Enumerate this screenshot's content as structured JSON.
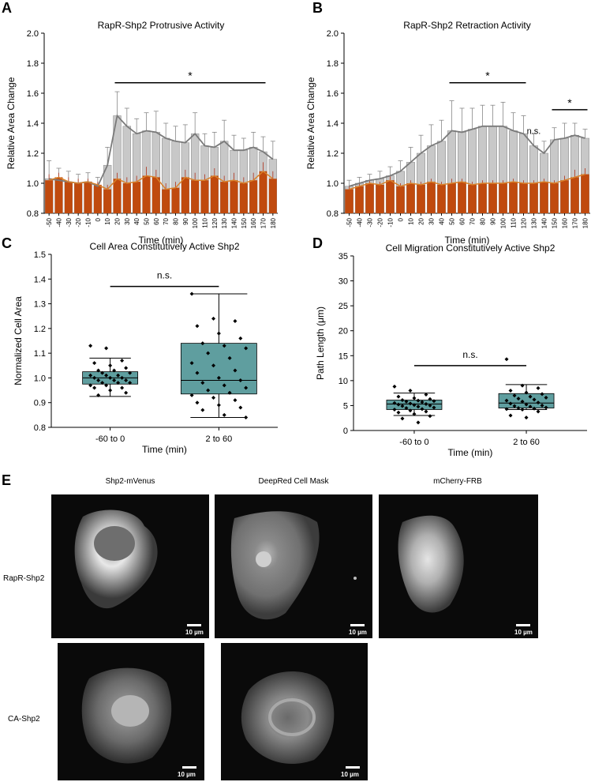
{
  "panel_letters": {
    "a": "A",
    "b": "B",
    "c": "C",
    "d": "D",
    "e": "E"
  },
  "colors": {
    "gray_bar": "#c8c8c8",
    "gray_line": "#7a7a7a",
    "orange_bar": "#c04a0e",
    "orange_line": "#d9822b",
    "box_fill": "#5f9e9f"
  },
  "chart_data": [
    {
      "id": "A",
      "type": "bar",
      "title": "RapR-Shp2 Protrusive Activity",
      "xlabel": "Time (min)",
      "ylabel": "Relative Area Change",
      "ylim": [
        0.8,
        2.0
      ],
      "yticks": [
        "0.8",
        "1.0",
        "1.2",
        "1.4",
        "1.6",
        "1.8",
        "2.0"
      ],
      "categories": [
        "-50",
        "-40",
        "-30",
        "-20",
        "-10",
        "0",
        "10",
        "20",
        "30",
        "40",
        "50",
        "60",
        "70",
        "80",
        "90",
        "100",
        "110",
        "120",
        "130",
        "140",
        "150",
        "160",
        "170",
        "180"
      ],
      "series": [
        {
          "values": [
            1.03,
            1.02,
            1.01,
            1.0,
            1.01,
            0.98,
            1.12,
            1.45,
            1.38,
            1.33,
            1.35,
            1.34,
            1.3,
            1.28,
            1.27,
            1.33,
            1.25,
            1.24,
            1.28,
            1.22,
            1.22,
            1.24,
            1.21,
            1.16
          ],
          "errors": [
            0.12,
            0.08,
            0.07,
            0.06,
            0.06,
            0.06,
            0.12,
            0.16,
            0.12,
            0.1,
            0.12,
            0.14,
            0.1,
            0.1,
            0.12,
            0.14,
            0.08,
            0.1,
            0.14,
            0.1,
            0.08,
            0.1,
            0.1,
            0.12
          ]
        },
        {
          "values": [
            1.02,
            1.04,
            1.01,
            1.0,
            1.01,
            0.99,
            0.96,
            1.03,
            1.0,
            1.01,
            1.05,
            1.04,
            0.96,
            0.97,
            1.04,
            1.02,
            1.02,
            1.05,
            1.01,
            1.02,
            1.0,
            1.02,
            1.08,
            1.03
          ],
          "errors": [
            0.04,
            0.03,
            0.03,
            0.03,
            0.02,
            0.02,
            0.03,
            0.04,
            0.04,
            0.04,
            0.06,
            0.05,
            0.04,
            0.04,
            0.05,
            0.05,
            0.04,
            0.05,
            0.04,
            0.05,
            0.04,
            0.05,
            0.06,
            0.05
          ]
        }
      ],
      "significance": [
        {
          "label": "*",
          "from": "20",
          "to": "170"
        }
      ]
    },
    {
      "id": "B",
      "type": "bar",
      "title": "RapR-Shp2 Retraction Activity",
      "xlabel": "Time (min)",
      "ylabel": "Relative Area Change",
      "ylim": [
        0.8,
        2.0
      ],
      "yticks": [
        "0.8",
        "1.0",
        "1.2",
        "1.4",
        "1.6",
        "1.8",
        "2.0"
      ],
      "categories": [
        "-50",
        "-40",
        "-30",
        "-20",
        "-10",
        "0",
        "10",
        "20",
        "30",
        "40",
        "50",
        "60",
        "70",
        "80",
        "90",
        "100",
        "110",
        "120",
        "130",
        "140",
        "150",
        "160",
        "170",
        "180"
      ],
      "series": [
        {
          "values": [
            0.98,
            1.0,
            1.02,
            1.03,
            1.05,
            1.08,
            1.14,
            1.2,
            1.25,
            1.28,
            1.35,
            1.34,
            1.36,
            1.38,
            1.38,
            1.38,
            1.35,
            1.33,
            1.25,
            1.2,
            1.29,
            1.3,
            1.32,
            1.3
          ],
          "errors": [
            0.04,
            0.04,
            0.04,
            0.05,
            0.06,
            0.07,
            0.1,
            0.12,
            0.14,
            0.14,
            0.2,
            0.16,
            0.14,
            0.14,
            0.14,
            0.16,
            0.12,
            0.12,
            0.08,
            0.08,
            0.08,
            0.1,
            0.08,
            0.06
          ]
        },
        {
          "values": [
            0.96,
            0.98,
            1.0,
            0.99,
            1.02,
            0.98,
            1.0,
            0.99,
            1.01,
            0.99,
            1.0,
            1.01,
            0.99,
            1.0,
            1.0,
            1.0,
            1.01,
            1.0,
            1.0,
            1.01,
            1.0,
            1.02,
            1.04,
            1.06
          ],
          "errors": [
            0.02,
            0.02,
            0.02,
            0.02,
            0.03,
            0.02,
            0.02,
            0.02,
            0.02,
            0.02,
            0.03,
            0.02,
            0.02,
            0.02,
            0.02,
            0.02,
            0.02,
            0.02,
            0.02,
            0.02,
            0.02,
            0.03,
            0.05,
            0.04
          ]
        }
      ],
      "significance": [
        {
          "label": "*",
          "from": "50",
          "to": "120"
        },
        {
          "label": "n.s.",
          "from": "130",
          "to": "130"
        },
        {
          "label": "*",
          "from": "150",
          "to": "180"
        }
      ]
    },
    {
      "id": "C",
      "type": "box",
      "title": "Cell Area Constitutively Active Shp2",
      "xlabel": "Time (min)",
      "ylabel": "Normalized Cell Area",
      "ylim": [
        0.8,
        1.5
      ],
      "yticks": [
        "0.8",
        "0.9",
        "1.0",
        "1.1",
        "1.2",
        "1.3",
        "1.4",
        "1.5"
      ],
      "categories": [
        "-60 to 0",
        "2 to 60"
      ],
      "boxes": [
        {
          "min": 0.925,
          "q1": 0.975,
          "median": 1.0,
          "q3": 1.025,
          "max": 1.08,
          "points": [
            1.13,
            1.12,
            1.07,
            1.06,
            1.05,
            1.04,
            1.03,
            1.03,
            1.02,
            1.02,
            1.01,
            1.01,
            1.01,
            1.0,
            1.0,
            1.0,
            0.99,
            0.99,
            0.99,
            0.98,
            0.98,
            0.98,
            0.97,
            0.97,
            0.96,
            0.96,
            0.95,
            0.94,
            0.93
          ]
        },
        {
          "min": 0.84,
          "q1": 0.935,
          "median": 0.99,
          "q3": 1.14,
          "max": 1.34,
          "points": [
            1.34,
            1.24,
            1.23,
            1.21,
            1.18,
            1.16,
            1.14,
            1.13,
            1.12,
            1.1,
            1.08,
            1.06,
            1.05,
            1.03,
            1.02,
            1.0,
            0.99,
            0.98,
            0.97,
            0.96,
            0.95,
            0.94,
            0.93,
            0.92,
            0.91,
            0.9,
            0.89,
            0.88,
            0.87,
            0.85,
            0.84
          ]
        }
      ],
      "significance": [
        {
          "label": "n.s.",
          "from": "-60 to 0",
          "to": "2 to 60"
        }
      ]
    },
    {
      "id": "D",
      "type": "box",
      "title": "Cell Migration Constitutively Active Shp2",
      "xlabel": "Time (min)",
      "ylabel": "Path Length (μm)",
      "ylim": [
        0,
        35
      ],
      "yticks": [
        "0",
        "5",
        "10",
        "15",
        "20",
        "25",
        "30",
        "35"
      ],
      "categories": [
        "-60 to 0",
        "2 to 60"
      ],
      "boxes": [
        {
          "min": 3.0,
          "q1": 4.2,
          "median": 5.3,
          "q3": 6.1,
          "max": 7.5,
          "points": [
            8.8,
            8.0,
            7.2,
            6.8,
            6.5,
            6.3,
            6.1,
            6.0,
            5.9,
            5.8,
            5.7,
            5.5,
            5.4,
            5.3,
            5.2,
            5.1,
            5.0,
            4.9,
            4.8,
            4.6,
            4.5,
            4.3,
            4.2,
            4.0,
            3.8,
            3.6,
            3.3,
            2.9,
            2.4,
            1.6
          ]
        },
        {
          "min": 4.2,
          "q1": 4.5,
          "median": 5.5,
          "q3": 7.4,
          "max": 9.2,
          "points": [
            14.3,
            9.0,
            8.5,
            8.0,
            7.6,
            7.3,
            7.0,
            6.8,
            6.6,
            6.4,
            6.2,
            6.0,
            5.8,
            5.6,
            5.4,
            5.2,
            5.0,
            4.9,
            4.8,
            4.6,
            4.5,
            4.4,
            4.3,
            4.2,
            3.8,
            3.0,
            2.6
          ]
        }
      ],
      "significance": [
        {
          "label": "n.s.",
          "from": "-60 to 0",
          "to": "2 to 60"
        }
      ]
    }
  ],
  "panel_e": {
    "column_titles": [
      "Shp2-mVenus",
      "DeepRed Cell Mask",
      "mCherry-FRB"
    ],
    "row_labels": [
      "RapR-Shp2",
      "CA-Shp2"
    ],
    "scale_label": "10 µm"
  }
}
